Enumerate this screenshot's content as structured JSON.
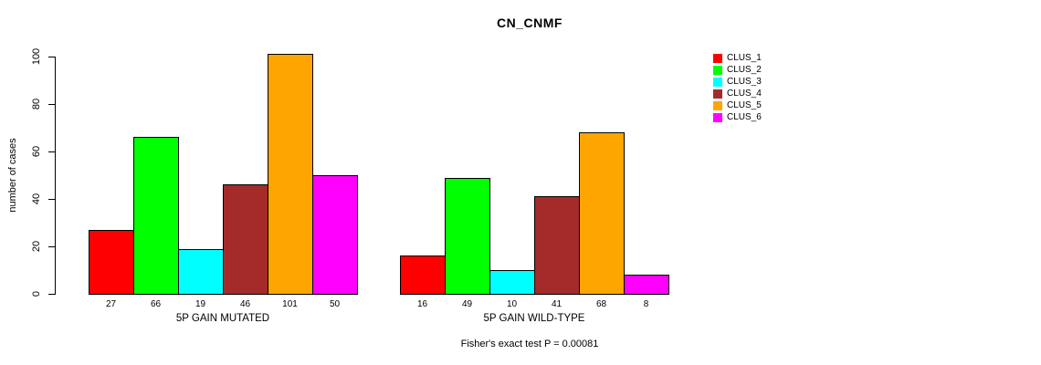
{
  "title": "CN_CNMF",
  "chart_data": {
    "type": "bar",
    "title": "CN_CNMF",
    "xlabel": "",
    "ylabel": "number of cases",
    "ylim": [
      0,
      100
    ],
    "yticks": [
      0,
      20,
      40,
      60,
      80,
      100
    ],
    "grid": false,
    "legend_position": "right",
    "series_names": [
      "CLUS_1",
      "CLUS_2",
      "CLUS_3",
      "CLUS_4",
      "CLUS_5",
      "CLUS_6"
    ],
    "colors": [
      "#ff0000",
      "#00ff00",
      "#00ffff",
      "#a52a2a",
      "#ffa500",
      "#ff00ff"
    ],
    "groups": [
      {
        "label": "5P GAIN MUTATED",
        "values": [
          27,
          66,
          19,
          46,
          101,
          50
        ]
      },
      {
        "label": "5P GAIN WILD-TYPE",
        "values": [
          16,
          49,
          10,
          41,
          68,
          8
        ]
      }
    ],
    "bar_values_shown_below_bars": true,
    "annotation": "Fisher's exact test P = 0.00081"
  }
}
